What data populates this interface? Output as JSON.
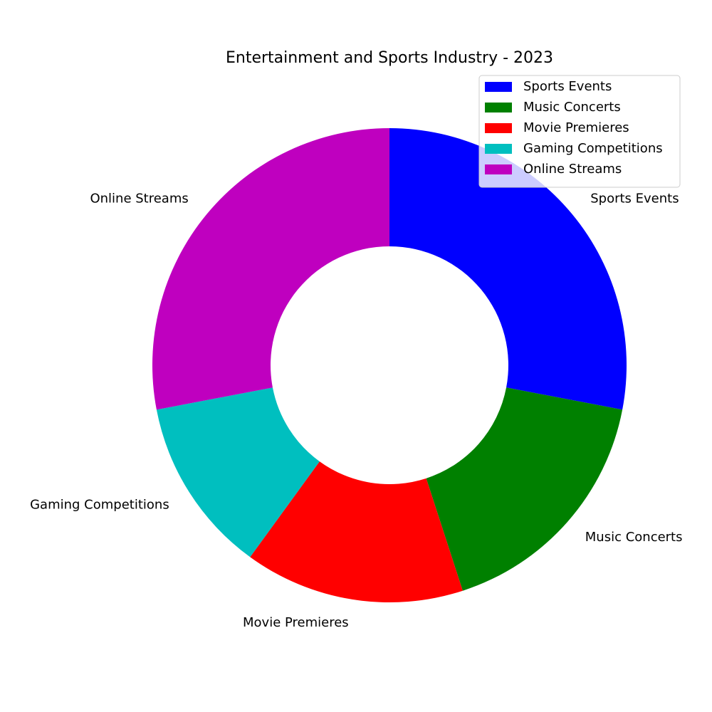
{
  "chart_data": {
    "type": "pie",
    "variant": "donut",
    "title": "Entertainment and Sports Industry - 2023",
    "categories": [
      "Sports Events",
      "Music Concerts",
      "Movie Premieres",
      "Gaming Competitions",
      "Online Streams"
    ],
    "values": [
      28,
      17,
      15,
      12,
      28
    ],
    "colors": [
      "#0000ff",
      "#008000",
      "#ff0000",
      "#00bfbf",
      "#bf00bf"
    ],
    "start_angle_deg": 90,
    "direction": "clockwise",
    "legend": {
      "placement": "top-right",
      "entries": [
        "Sports Events",
        "Music Concerts",
        "Movie Premieres",
        "Gaming Competitions",
        "Online Streams"
      ]
    }
  }
}
